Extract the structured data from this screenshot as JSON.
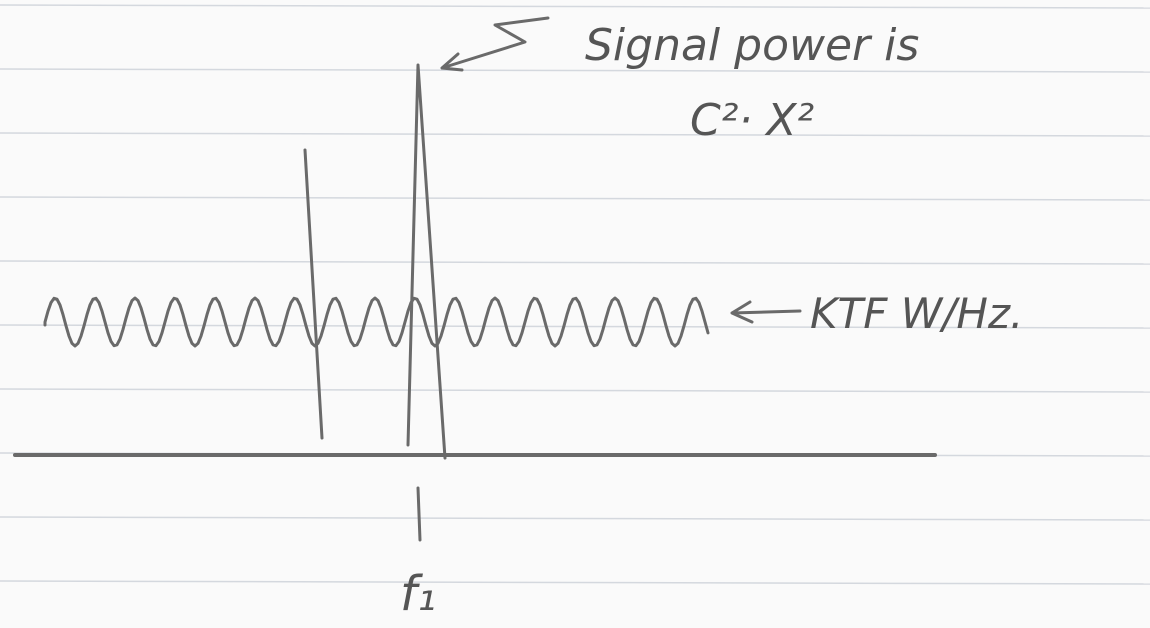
{
  "annotations": {
    "signal": "Signal power is",
    "formula": "C²· X²",
    "noise": "KTF  W/Hz.",
    "frequency": "f₁"
  }
}
